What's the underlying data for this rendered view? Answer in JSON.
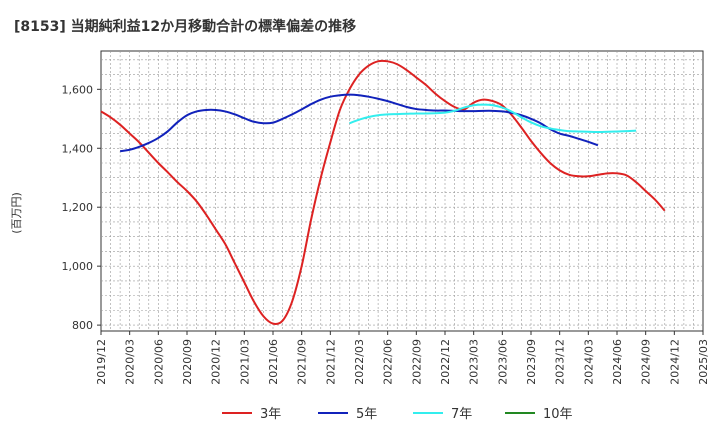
{
  "chart_data": {
    "type": "line",
    "title": "[8153]  当期純利益12か月移動合計の標準偏差の推移",
    "ylabel": "(百万円)",
    "xlabel": "",
    "ylim": [
      780,
      1730
    ],
    "y_ticks": [
      800,
      1000,
      1200,
      1400,
      1600
    ],
    "y_tick_labels": [
      "800",
      "1,000",
      "1,200",
      "1,400",
      "1,600"
    ],
    "x_tick_labels": [
      "2019/12",
      "2020/03",
      "2020/06",
      "2020/09",
      "2020/12",
      "2021/03",
      "2021/06",
      "2021/09",
      "2021/12",
      "2022/03",
      "2022/06",
      "2022/09",
      "2022/12",
      "2023/03",
      "2023/06",
      "2023/09",
      "2023/12",
      "2024/03",
      "2024/06",
      "2024/09",
      "2024/12",
      "2025/03"
    ],
    "grid": true,
    "legend_position": "bottom",
    "series": [
      {
        "name": "3年",
        "color": "#dd2222",
        "points": [
          [
            0,
            1525
          ],
          [
            1,
            1505
          ],
          [
            2,
            1480
          ],
          [
            3,
            1450
          ],
          [
            4,
            1420
          ],
          [
            5,
            1385
          ],
          [
            6,
            1350
          ],
          [
            7,
            1318
          ],
          [
            8,
            1285
          ],
          [
            9,
            1255
          ],
          [
            10,
            1220
          ],
          [
            11,
            1175
          ],
          [
            12,
            1125
          ],
          [
            13,
            1075
          ],
          [
            14,
            1010
          ],
          [
            15,
            945
          ],
          [
            16,
            880
          ],
          [
            17,
            830
          ],
          [
            18,
            805
          ],
          [
            19,
            815
          ],
          [
            20,
            880
          ],
          [
            21,
            1000
          ],
          [
            22,
            1160
          ],
          [
            23,
            1300
          ],
          [
            24,
            1420
          ],
          [
            25,
            1530
          ],
          [
            26,
            1600
          ],
          [
            27,
            1650
          ],
          [
            28,
            1680
          ],
          [
            29,
            1695
          ],
          [
            30,
            1695
          ],
          [
            31,
            1685
          ],
          [
            32,
            1665
          ],
          [
            33,
            1640
          ],
          [
            34,
            1615
          ],
          [
            35,
            1585
          ],
          [
            36,
            1560
          ],
          [
            37,
            1540
          ],
          [
            38,
            1532
          ],
          [
            39,
            1555
          ],
          [
            40,
            1565
          ],
          [
            41,
            1560
          ],
          [
            42,
            1545
          ],
          [
            43,
            1512
          ],
          [
            44,
            1470
          ],
          [
            45,
            1425
          ],
          [
            46,
            1385
          ],
          [
            47,
            1350
          ],
          [
            48,
            1325
          ],
          [
            49,
            1310
          ],
          [
            50,
            1305
          ],
          [
            51,
            1305
          ],
          [
            52,
            1310
          ],
          [
            53,
            1315
          ],
          [
            54,
            1315
          ],
          [
            55,
            1308
          ],
          [
            56,
            1285
          ],
          [
            57,
            1255
          ],
          [
            58,
            1225
          ],
          [
            59,
            1188
          ]
        ]
      },
      {
        "name": "5年",
        "color": "#1122bb",
        "points": [
          [
            2,
            1390
          ],
          [
            3,
            1395
          ],
          [
            4,
            1405
          ],
          [
            5,
            1418
          ],
          [
            6,
            1435
          ],
          [
            7,
            1458
          ],
          [
            8,
            1488
          ],
          [
            9,
            1512
          ],
          [
            10,
            1525
          ],
          [
            11,
            1530
          ],
          [
            12,
            1530
          ],
          [
            13,
            1525
          ],
          [
            14,
            1515
          ],
          [
            15,
            1502
          ],
          [
            16,
            1490
          ],
          [
            17,
            1485
          ],
          [
            18,
            1487
          ],
          [
            19,
            1500
          ],
          [
            20,
            1515
          ],
          [
            21,
            1532
          ],
          [
            22,
            1550
          ],
          [
            23,
            1565
          ],
          [
            24,
            1575
          ],
          [
            25,
            1580
          ],
          [
            26,
            1582
          ],
          [
            27,
            1580
          ],
          [
            28,
            1575
          ],
          [
            29,
            1568
          ],
          [
            30,
            1560
          ],
          [
            31,
            1550
          ],
          [
            32,
            1540
          ],
          [
            33,
            1533
          ],
          [
            34,
            1530
          ],
          [
            35,
            1528
          ],
          [
            36,
            1528
          ],
          [
            37,
            1527
          ],
          [
            38,
            1526
          ],
          [
            39,
            1526
          ],
          [
            40,
            1527
          ],
          [
            41,
            1527
          ],
          [
            42,
            1525
          ],
          [
            43,
            1520
          ],
          [
            44,
            1512
          ],
          [
            45,
            1500
          ],
          [
            46,
            1485
          ],
          [
            47,
            1465
          ],
          [
            48,
            1450
          ],
          [
            49,
            1442
          ],
          [
            50,
            1432
          ],
          [
            51,
            1422
          ],
          [
            52,
            1410
          ]
        ]
      },
      {
        "name": "7年",
        "color": "#33eeee",
        "points": [
          [
            26,
            1485
          ],
          [
            27,
            1497
          ],
          [
            28,
            1506
          ],
          [
            29,
            1512
          ],
          [
            30,
            1515
          ],
          [
            31,
            1516
          ],
          [
            32,
            1517
          ],
          [
            33,
            1518
          ],
          [
            34,
            1518
          ],
          [
            35,
            1519
          ],
          [
            36,
            1521
          ],
          [
            37,
            1527
          ],
          [
            38,
            1538
          ],
          [
            39,
            1546
          ],
          [
            40,
            1548
          ],
          [
            41,
            1546
          ],
          [
            42,
            1538
          ],
          [
            43,
            1524
          ],
          [
            44,
            1505
          ],
          [
            45,
            1488
          ],
          [
            46,
            1475
          ],
          [
            47,
            1467
          ],
          [
            48,
            1462
          ],
          [
            49,
            1458
          ],
          [
            50,
            1457
          ],
          [
            51,
            1456
          ],
          [
            52,
            1455
          ],
          [
            53,
            1456
          ],
          [
            54,
            1457
          ],
          [
            55,
            1458
          ],
          [
            56,
            1460
          ]
        ]
      },
      {
        "name": "10年",
        "color": "#228822",
        "points": []
      }
    ],
    "x_step_label": "quarter"
  }
}
